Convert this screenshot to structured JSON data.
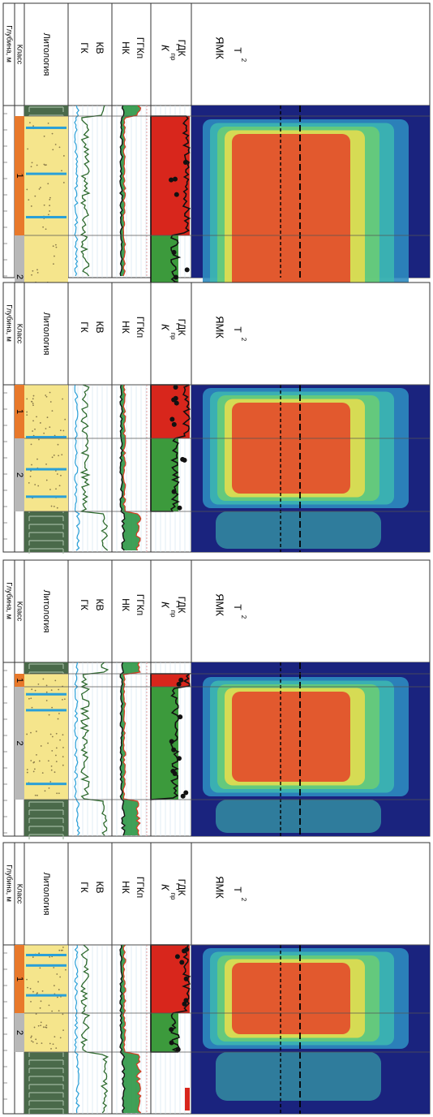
{
  "columns": {
    "depth": "Глубина, м",
    "class": "Класс",
    "lithology": "Литология",
    "gk": "ГК",
    "kv": "КВ",
    "nk": "НК",
    "ggkp": "ГГКп",
    "kpr": "К",
    "kpr_sub": "пр",
    "gdk": "ГДК",
    "yamk": "ЯМК",
    "t2": "T",
    "t2_sub": "2"
  },
  "panels": [
    {
      "class_labels": [
        "1",
        "2"
      ]
    },
    {
      "class_labels": [
        "1",
        "2"
      ]
    },
    {
      "class_labels": [
        "1",
        "2"
      ]
    },
    {
      "class_labels": [
        "1",
        "2"
      ]
    }
  ],
  "colors": {
    "class1": "#e8792b",
    "class2": "#b8b8b8",
    "sand": "#f5e58c",
    "shale": "#4a6a4a",
    "kv_green": "#2f6b2f",
    "gk_blue": "#2aa0d8",
    "nk_green": "#1f8f3a",
    "ggkp_red": "#d93b1f",
    "gdk_red": "#d8261c",
    "gdk_green": "#3c9a3c",
    "yamk_blue": "#1a237e"
  }
}
